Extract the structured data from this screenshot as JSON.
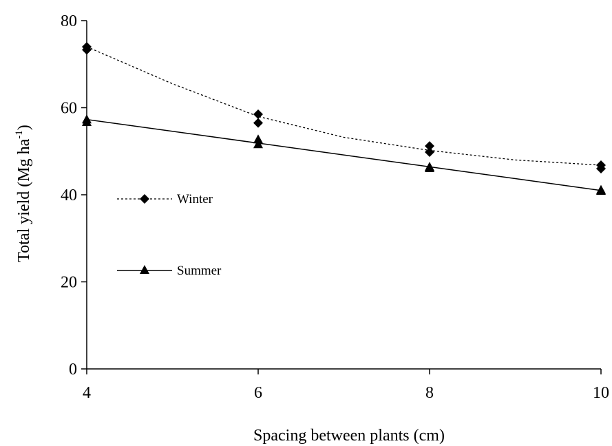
{
  "chart_data": {
    "type": "scatter",
    "title": "",
    "xlabel": "Spacing between plants (cm)",
    "ylabel_main": "Total yield (Mg ha",
    "ylabel_sup": "-1",
    "ylabel_close": ")",
    "xlim": [
      4,
      10
    ],
    "ylim": [
      0,
      80
    ],
    "xticks": [
      4,
      6,
      8,
      10
    ],
    "yticks": [
      0,
      20,
      40,
      60,
      80
    ],
    "grid": false,
    "legend_position": "left-middle",
    "series": [
      {
        "name": "Winter",
        "marker": "diamond",
        "line_style": "dotted",
        "color": "#000000",
        "points": [
          [
            4,
            74
          ],
          [
            4,
            73.3
          ],
          [
            6,
            58.5
          ],
          [
            6,
            56.5
          ],
          [
            8,
            51.2
          ],
          [
            8,
            49.8
          ],
          [
            10,
            46.8
          ],
          [
            10,
            46.0
          ]
        ],
        "trend": [
          [
            4,
            74
          ],
          [
            5,
            65.5
          ],
          [
            6,
            58
          ],
          [
            7,
            53.2
          ],
          [
            8,
            50.2
          ],
          [
            9,
            48
          ],
          [
            10,
            46.8
          ]
        ]
      },
      {
        "name": "Summer",
        "marker": "triangle",
        "line_style": "solid",
        "color": "#000000",
        "points": [
          [
            4,
            57.2
          ],
          [
            4,
            56.6
          ],
          [
            6,
            52.6
          ],
          [
            6,
            51.5
          ],
          [
            8,
            46.3
          ],
          [
            8,
            46.0
          ],
          [
            10,
            41.0
          ],
          [
            10,
            40.8
          ]
        ],
        "trend": [
          [
            4,
            57.3
          ],
          [
            10,
            41.0
          ]
        ]
      }
    ]
  }
}
